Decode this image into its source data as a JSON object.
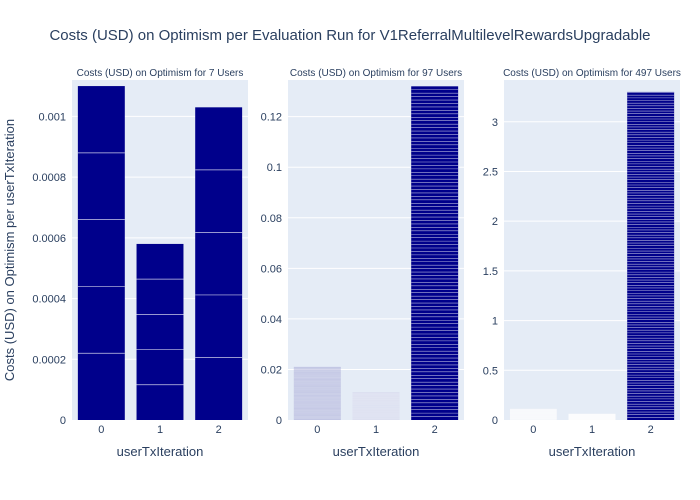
{
  "title": "Costs (USD) on Optimism per Evaluation Run for V1ReferralMultilevelRewardsUpgradable",
  "ylabel": "Costs (USD) on Optimism per userTxIteration",
  "colors": {
    "plot_bg": "#e5ecf6",
    "bar": "#00008b",
    "grid": "#ffffff",
    "text": "#2a3f5f"
  },
  "chart_data": [
    {
      "type": "bar",
      "stacked": true,
      "title": "Costs (USD) on Optimism for 7 Users",
      "xlabel": "userTxIteration",
      "categories": [
        "0",
        "1",
        "2"
      ],
      "values": [
        0.0011,
        0.00058,
        0.00103
      ],
      "segments": 5,
      "ylim": [
        0,
        0.00112
      ],
      "yticks": [
        0,
        0.0002,
        0.0004,
        0.0006,
        0.0008,
        0.001
      ],
      "ytick_labels": [
        "0",
        "0.0002",
        "0.0004",
        "0.0006",
        "0.0008",
        "0.001"
      ]
    },
    {
      "type": "bar",
      "stacked": true,
      "title": "Costs (USD) on Optimism for 97 Users",
      "xlabel": "userTxIteration",
      "categories": [
        "0",
        "1",
        "2"
      ],
      "values": [
        0.021,
        0.011,
        0.132
      ],
      "segments": 97,
      "ylim": [
        0,
        0.1345
      ],
      "yticks": [
        0,
        0.02,
        0.04,
        0.06,
        0.08,
        0.1,
        0.12
      ],
      "ytick_labels": [
        "0",
        "0.02",
        "0.04",
        "0.06",
        "0.08",
        "0.1",
        "0.12"
      ]
    },
    {
      "type": "bar",
      "stacked": true,
      "title": "Costs (USD) on Optimism for 497 Users",
      "xlabel": "userTxIteration",
      "categories": [
        "0",
        "1",
        "2"
      ],
      "values": [
        0.11,
        0.06,
        3.3
      ],
      "segments": 497,
      "ylim": [
        0,
        3.42
      ],
      "yticks": [
        0,
        0.5,
        1,
        1.5,
        2,
        2.5,
        3
      ],
      "ytick_labels": [
        "0",
        "0.5",
        "1",
        "1.5",
        "2",
        "2.5",
        "3"
      ]
    }
  ]
}
